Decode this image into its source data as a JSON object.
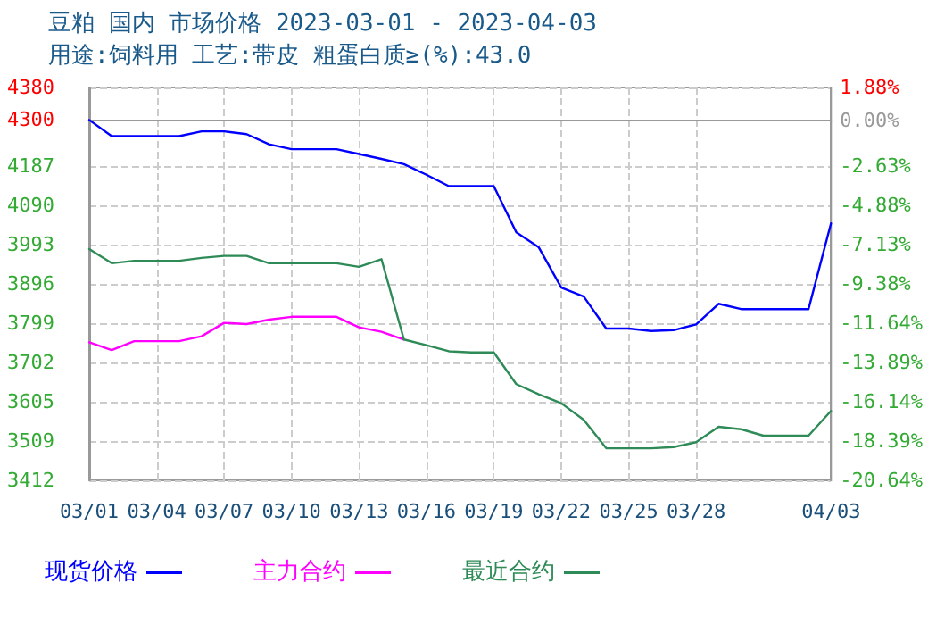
{
  "chart_data": {
    "type": "line",
    "title": "豆粕 国内 市场价格 2023-03-01 - 2023-04-03",
    "subtitle": "用途:饲料用 工艺:带皮 粗蛋白质≥(%):43.0",
    "x": [
      "2023-03-01",
      "2023-03-02",
      "2023-03-03",
      "2023-03-04",
      "2023-03-05",
      "2023-03-06",
      "2023-03-07",
      "2023-03-08",
      "2023-03-09",
      "2023-03-10",
      "2023-03-11",
      "2023-03-12",
      "2023-03-13",
      "2023-03-14",
      "2023-03-15",
      "2023-03-16",
      "2023-03-17",
      "2023-03-18",
      "2023-03-19",
      "2023-03-20",
      "2023-03-21",
      "2023-03-22",
      "2023-03-23",
      "2023-03-24",
      "2023-03-25",
      "2023-03-26",
      "2023-03-27",
      "2023-03-28",
      "2023-03-29",
      "2023-03-30",
      "2023-03-31",
      "2023-04-01",
      "2023-04-02",
      "2023-04-03"
    ],
    "series": [
      {
        "name": "现货价格",
        "color": "#0000ff",
        "values": [
          4300,
          4260,
          4260,
          4260,
          4260,
          4272,
          4272,
          4265,
          4240,
          4228,
          4228,
          4228,
          4216,
          4204,
          4191,
          4165,
          4137,
          4137,
          4137,
          4023,
          3986,
          3887,
          3865,
          3786,
          3786,
          3780,
          3782,
          3796,
          3847,
          3834,
          3834,
          3834,
          3834,
          4045
        ]
      },
      {
        "name": "主力合约",
        "color": "#ff00ff",
        "values": [
          3752,
          3733,
          3755,
          3755,
          3755,
          3767,
          3800,
          3797,
          3808,
          3815,
          3815,
          3815,
          3789,
          3778,
          3759,
          null,
          null,
          null,
          null,
          null,
          null,
          null,
          null,
          null,
          null,
          null,
          null,
          null,
          null,
          null,
          null,
          null,
          null,
          null
        ]
      },
      {
        "name": "最近合约",
        "color": "#2e8b57",
        "values": [
          3982,
          3947,
          3953,
          3953,
          3953,
          3960,
          3965,
          3965,
          3947,
          3947,
          3947,
          3947,
          3938,
          3957,
          3759,
          3745,
          3730,
          3727,
          3727,
          3649,
          3624,
          3602,
          3561,
          3491,
          3491,
          3491,
          3494,
          3506,
          3544,
          3538,
          3522,
          3522,
          3522,
          3583
        ]
      }
    ],
    "xlim": [
      "2023-03-01",
      "2023-04-03"
    ],
    "xticks": [
      {
        "value": "2023-03-01",
        "label": "03/01"
      },
      {
        "value": "2023-03-04",
        "label": "03/04"
      },
      {
        "value": "2023-03-07",
        "label": "03/07"
      },
      {
        "value": "2023-03-10",
        "label": "03/10"
      },
      {
        "value": "2023-03-13",
        "label": "03/13"
      },
      {
        "value": "2023-03-16",
        "label": "03/16"
      },
      {
        "value": "2023-03-19",
        "label": "03/19"
      },
      {
        "value": "2023-03-22",
        "label": "03/22"
      },
      {
        "value": "2023-03-25",
        "label": "03/25"
      },
      {
        "value": "2023-03-28",
        "label": "03/28"
      },
      {
        "value": "2023-04-03",
        "label": "04/03"
      }
    ],
    "ylim": [
      3412,
      4380
    ],
    "yticks": [
      3412,
      3509,
      3605,
      3702,
      3799,
      3896,
      3993,
      4090,
      4187,
      4300,
      4380
    ],
    "y2lim": [
      -20.64,
      1.88
    ],
    "y2ticks": [
      {
        "value": -20.64,
        "label": "-20.64%"
      },
      {
        "value": -18.39,
        "label": "-18.39%"
      },
      {
        "value": -16.14,
        "label": "-16.14%"
      },
      {
        "value": -13.89,
        "label": "-13.89%"
      },
      {
        "value": -11.64,
        "label": "-11.64%"
      },
      {
        "value": -9.38,
        "label": "-9.38%"
      },
      {
        "value": -7.13,
        "label": "-7.13%"
      },
      {
        "value": -4.88,
        "label": "-4.88%"
      },
      {
        "value": -2.63,
        "label": "-2.63%"
      },
      {
        "value": 0,
        "label": "0.00%"
      },
      {
        "value": 1.88,
        "label": "1.88%"
      }
    ],
    "grid": true,
    "legend": "bottom left",
    "marker": "none",
    "line_style": "solid"
  }
}
